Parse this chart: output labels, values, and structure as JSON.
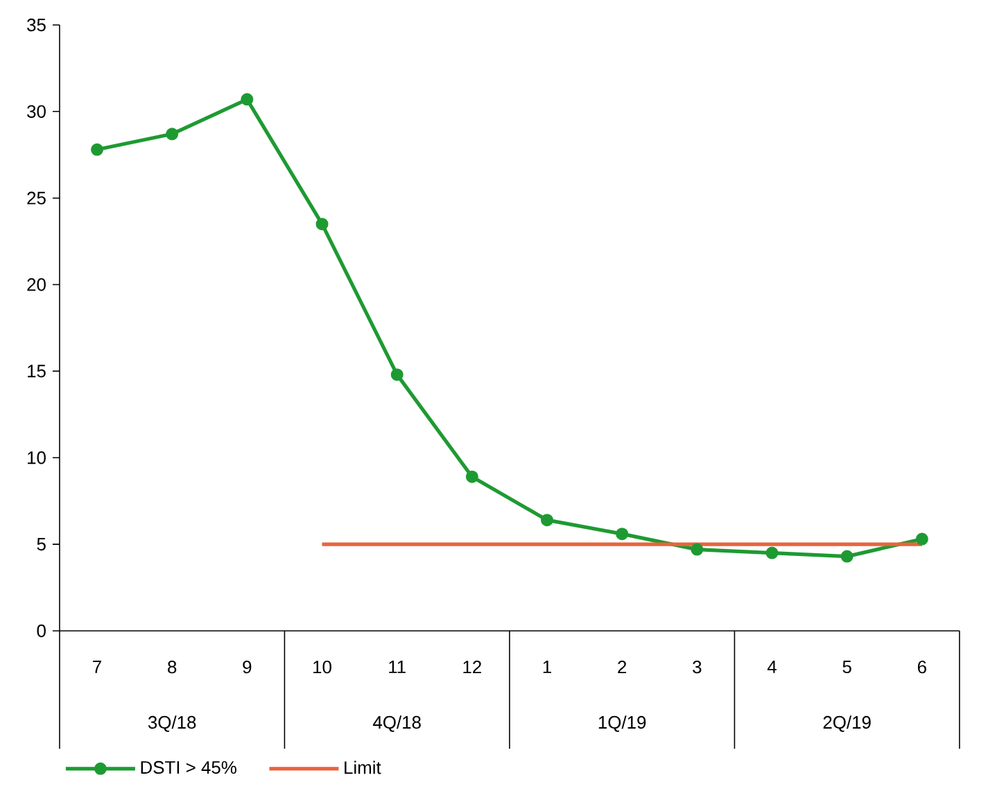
{
  "chart_data": {
    "type": "line",
    "categories": [
      "7",
      "8",
      "9",
      "10",
      "11",
      "12",
      "1",
      "2",
      "3",
      "4",
      "5",
      "6"
    ],
    "annotations": [
      "3Q/18",
      "4Q/18",
      "1Q/19",
      "2Q/19"
    ],
    "series": [
      {
        "name": "DSTI > 45%",
        "color": "#1e9a32",
        "marker": "circle",
        "values": [
          27.8,
          28.7,
          30.7,
          23.5,
          14.8,
          8.9,
          6.4,
          5.6,
          4.7,
          4.5,
          4.3,
          5.3
        ]
      },
      {
        "name": "Limit",
        "color": "#e8643c",
        "marker": "none",
        "values": [
          null,
          null,
          null,
          5,
          5,
          5,
          5,
          5,
          5,
          5,
          5,
          5
        ]
      }
    ],
    "ylim": [
      0,
      35
    ],
    "yticks": [
      0,
      5,
      10,
      15,
      20,
      25,
      30,
      35
    ],
    "legend": "bottom"
  }
}
